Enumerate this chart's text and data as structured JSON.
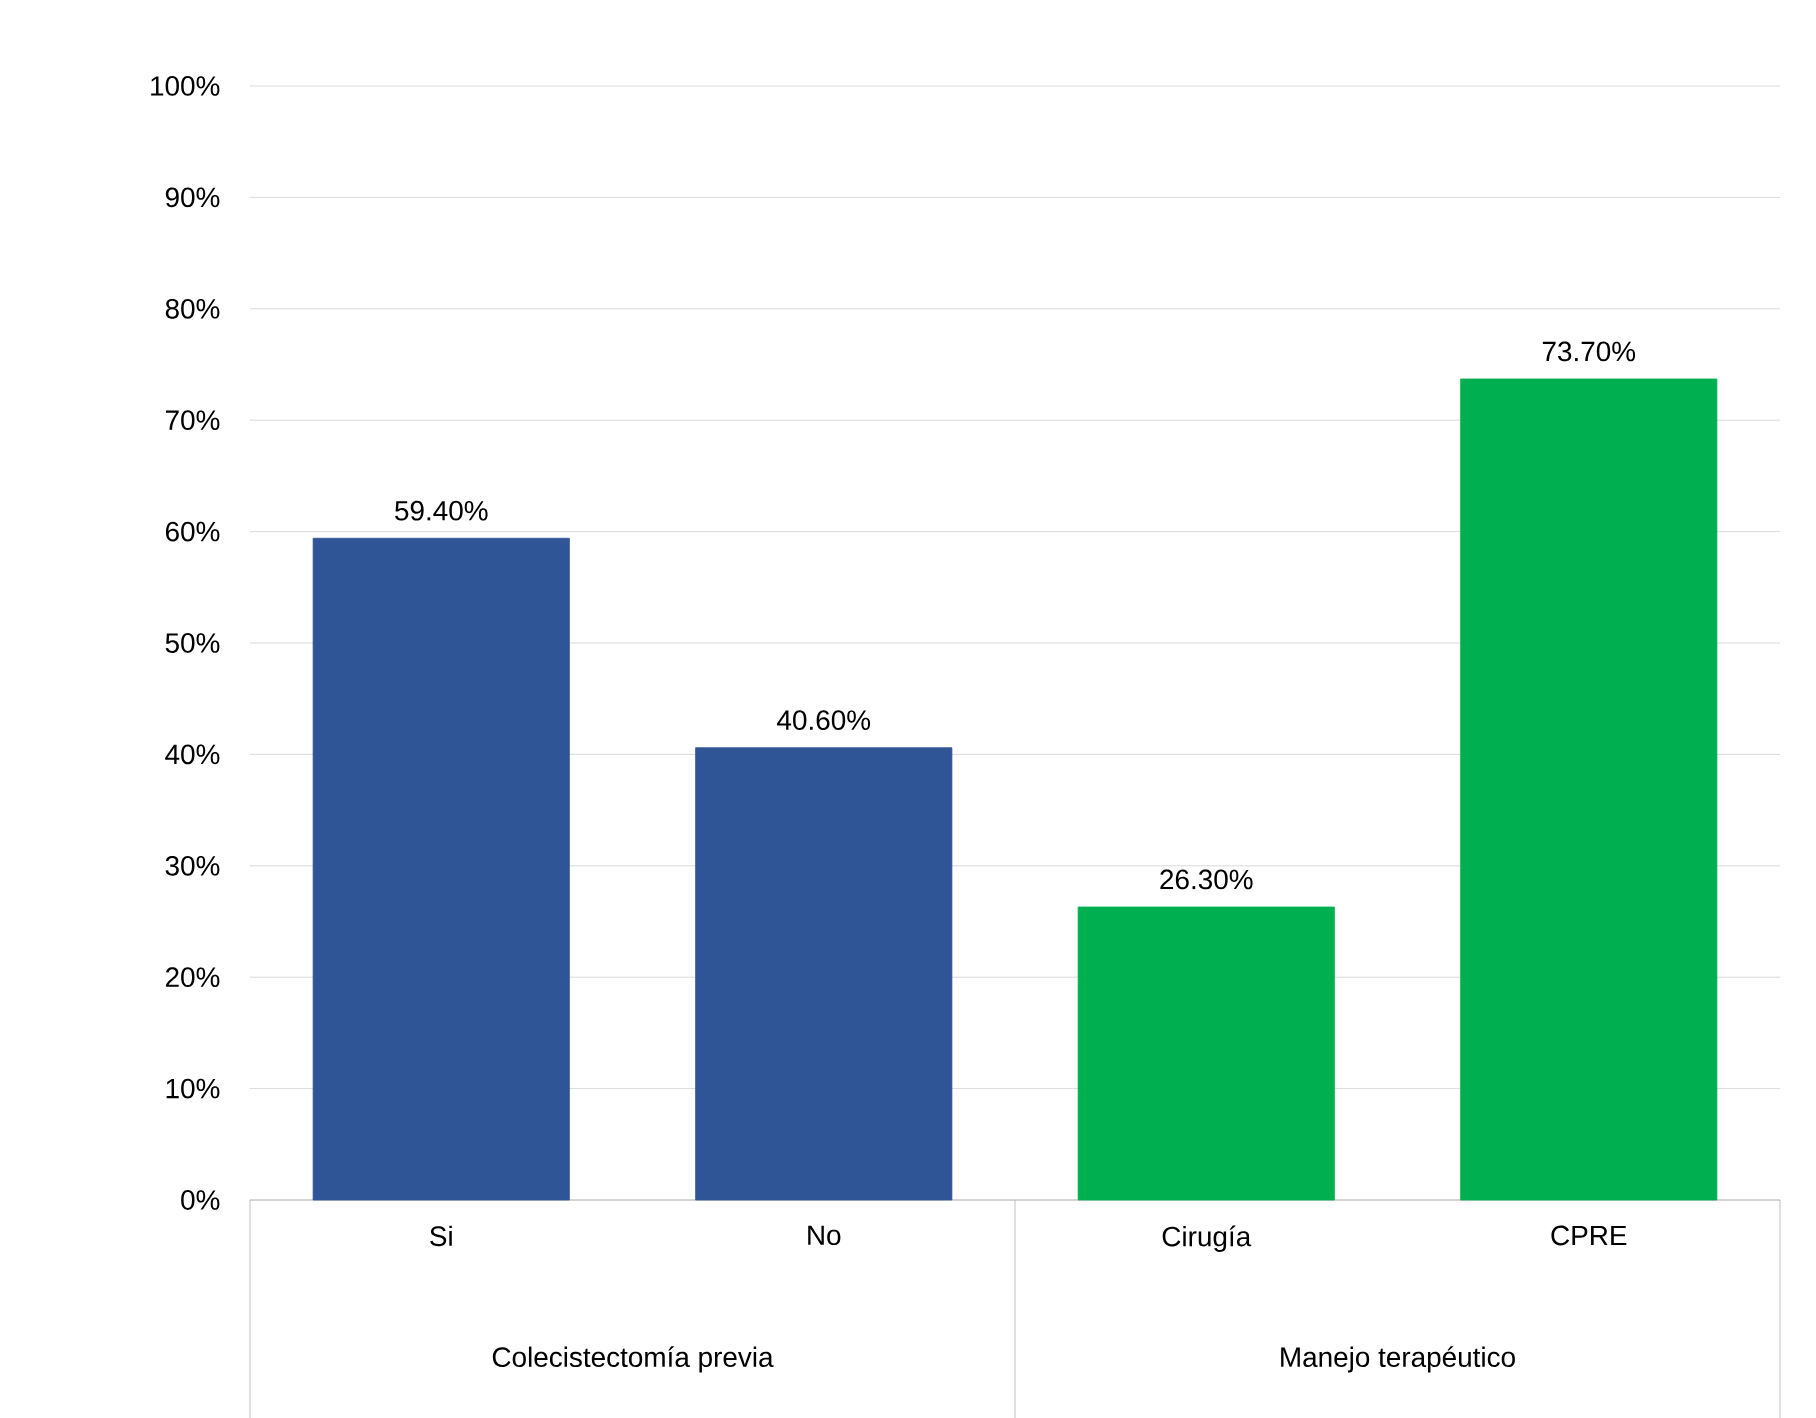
{
  "chart_data": {
    "type": "bar",
    "categories": [
      "Si",
      "No",
      "Cirugía",
      "CPRE"
    ],
    "values": [
      59.4,
      40.6,
      26.3,
      73.7
    ],
    "colors": [
      "#2f5597",
      "#2f5597",
      "#00b050",
      "#00b050"
    ],
    "value_labels": [
      "59.40%",
      "40.60%",
      "26.30%",
      "73.70%"
    ],
    "ylim": [
      0,
      100
    ],
    "yticks": [
      {
        "value": 0,
        "label": "0%"
      },
      {
        "value": 10,
        "label": "10%"
      },
      {
        "value": 20,
        "label": "20%"
      },
      {
        "value": 30,
        "label": "30%"
      },
      {
        "value": 40,
        "label": "40%"
      },
      {
        "value": 50,
        "label": "50%"
      },
      {
        "value": 60,
        "label": "60%"
      },
      {
        "value": 70,
        "label": "70%"
      },
      {
        "value": 80,
        "label": "80%"
      },
      {
        "value": 90,
        "label": "90%"
      },
      {
        "value": 100,
        "label": "100%"
      }
    ],
    "grid": "y",
    "annotations": [
      "Colecistectomía previa",
      "Manejo terapéutico"
    ]
  }
}
